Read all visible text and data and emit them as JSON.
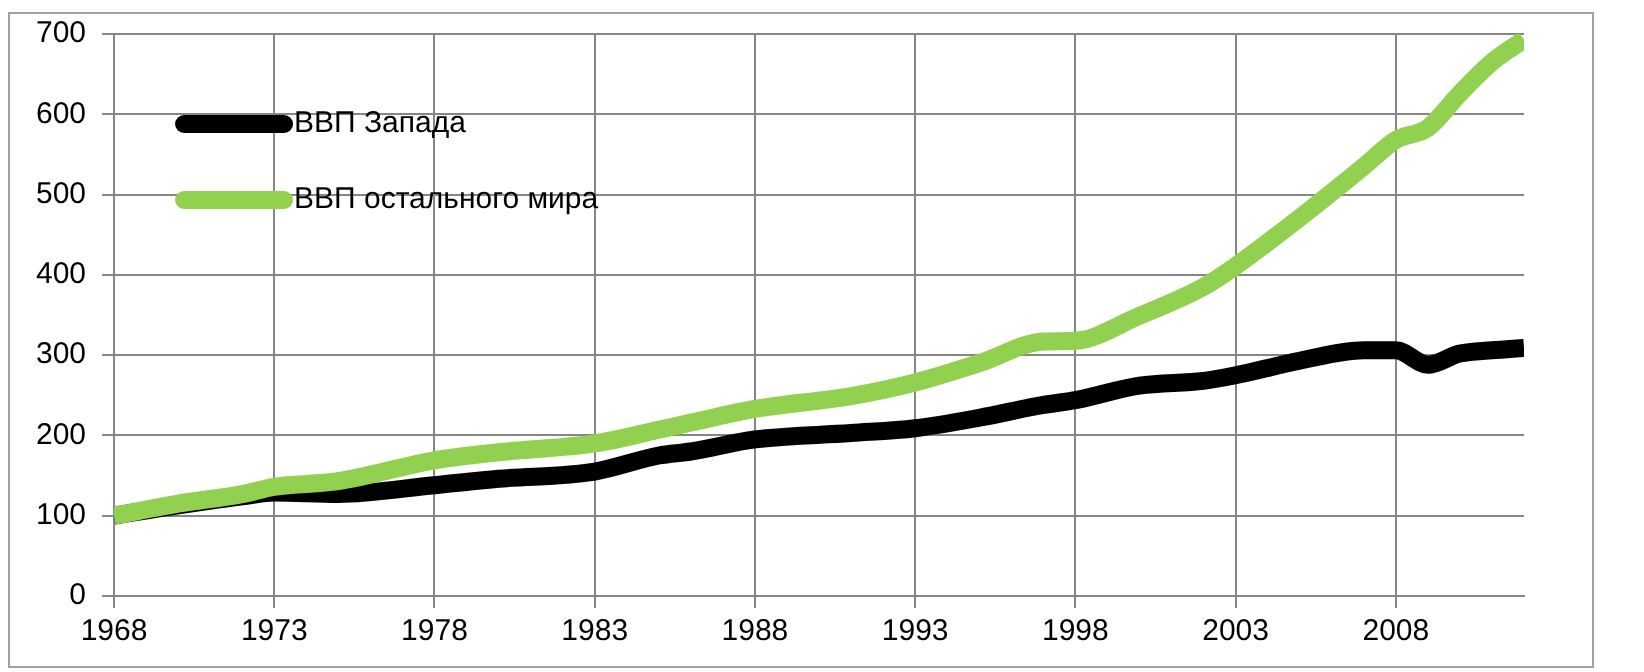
{
  "chart_data": {
    "type": "line",
    "x": [
      1968,
      1970,
      1972,
      1973,
      1975,
      1978,
      1980,
      1983,
      1985,
      1986,
      1988,
      1991,
      1993,
      1995,
      1997,
      1998,
      2000,
      2002,
      2003,
      2005,
      2007,
      2008,
      2009,
      2010,
      2011,
      2012
    ],
    "series": [
      {
        "name": "ВВП Запада",
        "color": "#000000",
        "values": [
          100,
          113,
          124,
          129,
          127,
          138,
          146,
          155,
          175,
          180,
          195,
          203,
          209,
          222,
          238,
          244,
          262,
          268,
          275,
          293,
          306,
          306,
          288,
          302,
          306,
          309
        ]
      },
      {
        "name": "ВВП остального мира",
        "color": "#92d050",
        "values": [
          100,
          115,
          127,
          136,
          143,
          169,
          179,
          190,
          207,
          216,
          233,
          249,
          266,
          290,
          317,
          318,
          349,
          385,
          411,
          471,
          535,
          568,
          583,
          626,
          665,
          693
        ]
      }
    ],
    "xlim": [
      1968,
      2012
    ],
    "xticks": [
      1968,
      1973,
      1978,
      1983,
      1988,
      1993,
      1998,
      2003,
      2008
    ],
    "ylim": [
      0,
      700
    ],
    "yticks": [
      0,
      100,
      200,
      300,
      400,
      500,
      600,
      700
    ],
    "grid": true,
    "legend": "top left",
    "marker": "none"
  }
}
